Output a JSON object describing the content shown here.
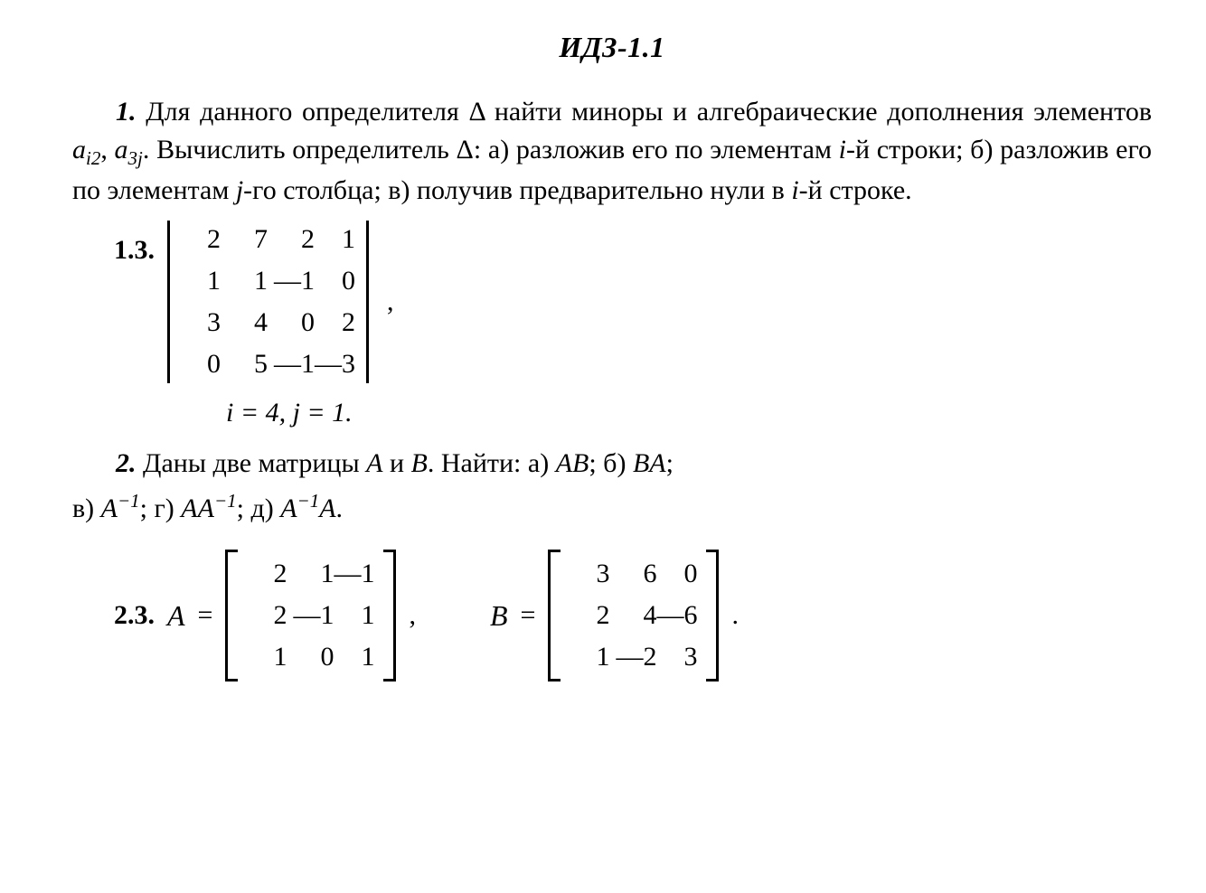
{
  "title": "ИДЗ-1.1",
  "p1": {
    "num": "1.",
    "t1": "Для данного определителя Δ найти миноры и алгебраические дополнения элементов ",
    "a_i2": "a",
    "a_i2_sub": "i2",
    "comma": ", ",
    "a_3j": "a",
    "a_3j_sub": "3j",
    "t2": ". Вычислить определитель Δ: а) разложив его по элементам ",
    "i": "i",
    "t3": "-й строки; б) разложив его по элементам ",
    "j": "j",
    "t4": "-го столбца; в) получив предварительно нули в ",
    "i2": "i",
    "t5": "-й строке."
  },
  "prob13": {
    "label": "1.3.",
    "matrix": [
      [
        "2",
        "7",
        "2",
        "1"
      ],
      [
        "1",
        "1",
        "—1",
        "0"
      ],
      [
        "3",
        "4",
        "0",
        "2"
      ],
      [
        "0",
        "5",
        "—1",
        "—3"
      ]
    ],
    "comma": ",",
    "ij": "i = 4,  j = 1."
  },
  "p2": {
    "num": "2.",
    "t1": "Даны две матрицы ",
    "A": "A",
    "and": " и ",
    "B": "B",
    "t2": ". Найти: а) ",
    "AB": "AB",
    "t3": "; б) ",
    "BA": "BA",
    "t4": ";",
    "line2_a": "в) ",
    "Ainv": "A",
    "supm1": "−1",
    "t5": "; г) ",
    "AAinv": "AA",
    "t6": "; д) ",
    "AinvA_pre": "A",
    "AinvA_post": "A",
    "t7": "."
  },
  "prob23": {
    "label": "2.3.",
    "A_name": "A",
    "eq": "=",
    "A": [
      [
        "2",
        "1",
        "—1"
      ],
      [
        "2",
        "—1",
        "1"
      ],
      [
        "1",
        "0",
        "1"
      ]
    ],
    "commaA": ",",
    "B_name": "B",
    "B": [
      [
        "3",
        "6",
        "0"
      ],
      [
        "2",
        "4",
        "—6"
      ],
      [
        "1",
        "—2",
        "3"
      ]
    ],
    "period": "."
  },
  "style": {
    "text_color": "#000000",
    "background_color": "#ffffff",
    "body_fontsize": 30,
    "title_fontsize": 32,
    "matrix_fontsize": 30,
    "font_family": "Georgia, Times New Roman, serif",
    "line_height": 1.4
  }
}
